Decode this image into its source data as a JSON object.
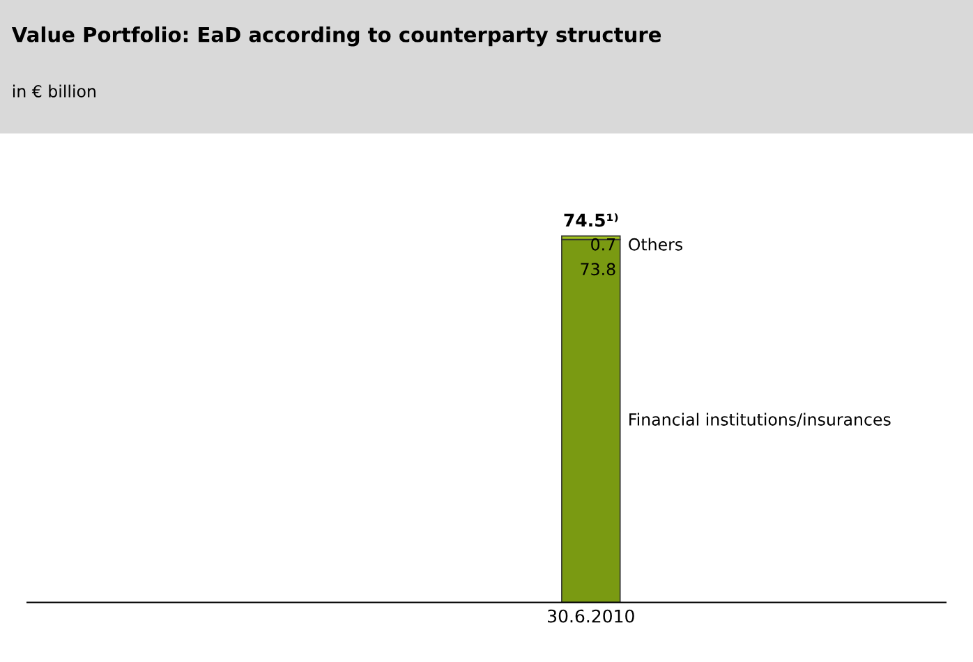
{
  "chart_data": {
    "type": "bar",
    "stacked": true,
    "title": "Value Portfolio: EaD according to counterparty structure",
    "subtitle": "in € billion",
    "categories": [
      "30.6.2010"
    ],
    "series": [
      {
        "name": "Financial institutions/insurances",
        "color": "#7a9a12",
        "values": [
          73.8
        ]
      },
      {
        "name": "Others",
        "color": "#a3c41c",
        "values": [
          0.7
        ]
      }
    ],
    "totals": [
      "74.5¹⁾"
    ],
    "data_labels": true,
    "legend": false,
    "grid": false
  }
}
